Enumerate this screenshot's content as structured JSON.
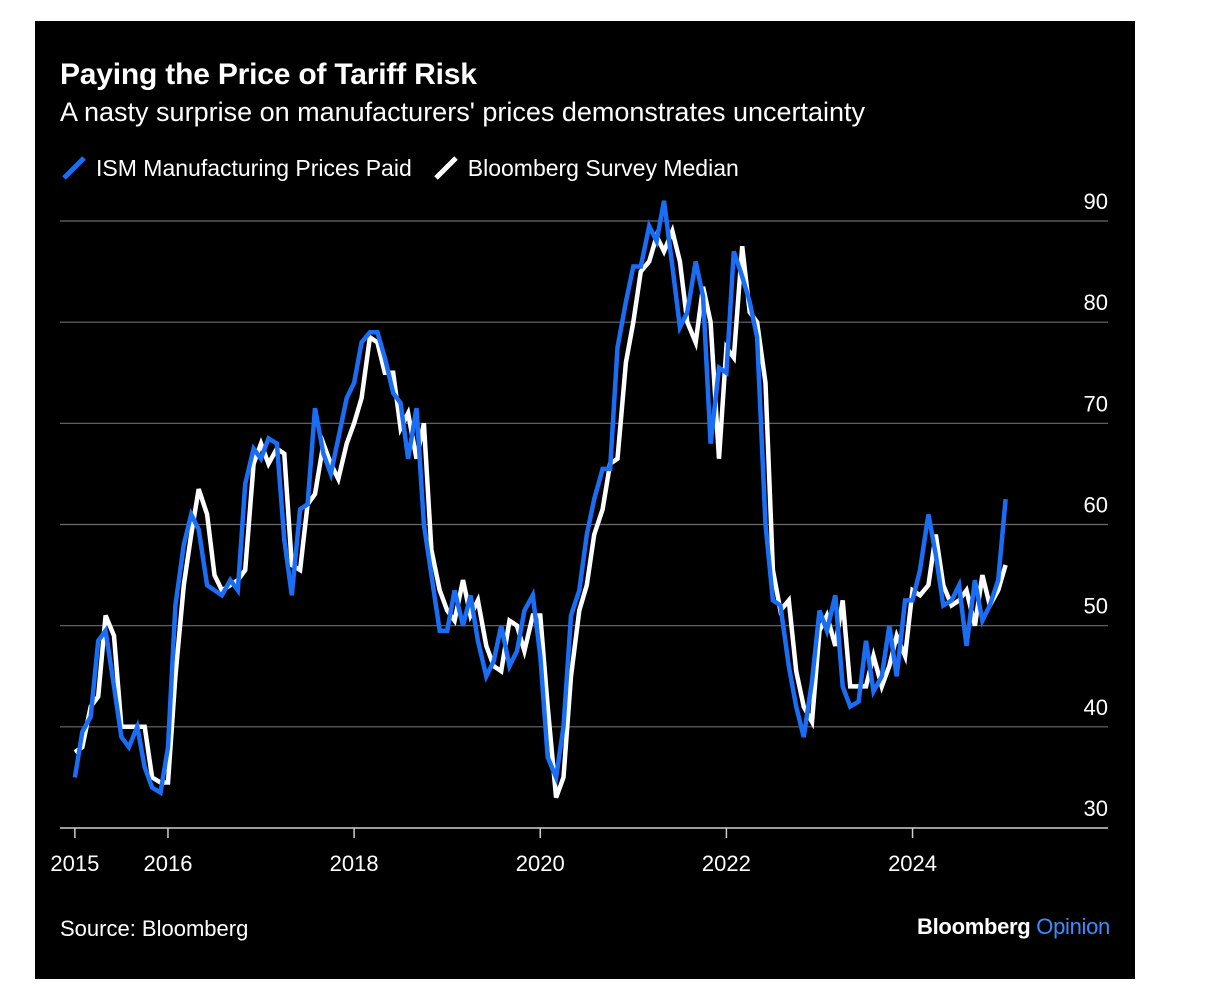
{
  "chart_data": {
    "type": "line",
    "title": "Paying the Price of Tariff Risk",
    "subtitle": "A nasty surprise on manufacturers' prices demonstrates uncertainty",
    "xlabel": "",
    "ylabel": "",
    "ylim": [
      30,
      90
    ],
    "xlim": [
      2015,
      2026
    ],
    "yticks": [
      30,
      40,
      50,
      60,
      70,
      80,
      90
    ],
    "xticks": [
      {
        "value": 2015,
        "label": "2015"
      },
      {
        "value": 2016,
        "label": "2016"
      },
      {
        "value": 2018,
        "label": "2018"
      },
      {
        "value": 2020,
        "label": "2020"
      },
      {
        "value": 2022,
        "label": "2022"
      },
      {
        "value": 2024,
        "label": "2024"
      }
    ],
    "grid": true,
    "y_axis_side": "right",
    "legend_placement": "top-left",
    "series": [
      {
        "name": "ISM Manufacturing Prices Paid",
        "color": "#1a6ef5",
        "points": [
          [
            2015.0,
            35.0
          ],
          [
            2015.08,
            39.5
          ],
          [
            2015.17,
            41.0
          ],
          [
            2015.25,
            48.5
          ],
          [
            2015.33,
            49.5
          ],
          [
            2015.42,
            44.0
          ],
          [
            2015.5,
            39.0
          ],
          [
            2015.58,
            38.0
          ],
          [
            2015.67,
            40.0
          ],
          [
            2015.75,
            36.0
          ],
          [
            2015.83,
            34.0
          ],
          [
            2015.92,
            33.5
          ],
          [
            2016.0,
            38.0
          ],
          [
            2016.08,
            52.0
          ],
          [
            2016.17,
            58.0
          ],
          [
            2016.25,
            61.0
          ],
          [
            2016.33,
            59.5
          ],
          [
            2016.42,
            54.0
          ],
          [
            2016.5,
            53.5
          ],
          [
            2016.58,
            53.0
          ],
          [
            2016.67,
            54.5
          ],
          [
            2016.75,
            53.5
          ],
          [
            2016.83,
            64.0
          ],
          [
            2016.92,
            67.5
          ],
          [
            2017.0,
            66.5
          ],
          [
            2017.08,
            68.5
          ],
          [
            2017.17,
            68.0
          ],
          [
            2017.25,
            58.5
          ],
          [
            2017.33,
            53.0
          ],
          [
            2017.42,
            61.5
          ],
          [
            2017.5,
            62.0
          ],
          [
            2017.58,
            71.5
          ],
          [
            2017.67,
            67.0
          ],
          [
            2017.75,
            65.0
          ],
          [
            2017.83,
            68.5
          ],
          [
            2017.92,
            72.5
          ],
          [
            2018.0,
            74.0
          ],
          [
            2018.08,
            78.0
          ],
          [
            2018.17,
            79.0
          ],
          [
            2018.25,
            79.0
          ],
          [
            2018.33,
            76.5
          ],
          [
            2018.42,
            73.0
          ],
          [
            2018.5,
            72.0
          ],
          [
            2018.58,
            66.5
          ],
          [
            2018.67,
            71.5
          ],
          [
            2018.75,
            60.0
          ],
          [
            2018.83,
            55.0
          ],
          [
            2018.92,
            49.5
          ],
          [
            2019.0,
            49.5
          ],
          [
            2019.08,
            53.5
          ],
          [
            2019.17,
            50.0
          ],
          [
            2019.25,
            53.0
          ],
          [
            2019.33,
            48.5
          ],
          [
            2019.42,
            45.0
          ],
          [
            2019.5,
            46.5
          ],
          [
            2019.58,
            50.0
          ],
          [
            2019.67,
            46.0
          ],
          [
            2019.75,
            47.5
          ],
          [
            2019.83,
            51.5
          ],
          [
            2019.92,
            53.0
          ],
          [
            2020.0,
            47.0
          ],
          [
            2020.08,
            37.0
          ],
          [
            2020.17,
            35.0
          ],
          [
            2020.25,
            40.0
          ],
          [
            2020.33,
            51.0
          ],
          [
            2020.42,
            53.5
          ],
          [
            2020.5,
            59.0
          ],
          [
            2020.58,
            62.5
          ],
          [
            2020.67,
            65.5
          ],
          [
            2020.75,
            65.5
          ],
          [
            2020.83,
            77.5
          ],
          [
            2020.92,
            82.0
          ],
          [
            2021.0,
            85.5
          ],
          [
            2021.08,
            85.5
          ],
          [
            2021.17,
            89.5
          ],
          [
            2021.25,
            88.0
          ],
          [
            2021.33,
            92.0
          ],
          [
            2021.42,
            85.5
          ],
          [
            2021.5,
            79.5
          ],
          [
            2021.58,
            81.0
          ],
          [
            2021.67,
            86.0
          ],
          [
            2021.75,
            82.5
          ],
          [
            2021.83,
            68.0
          ],
          [
            2021.92,
            75.5
          ],
          [
            2022.0,
            75.0
          ],
          [
            2022.08,
            87.0
          ],
          [
            2022.17,
            84.5
          ],
          [
            2022.25,
            82.0
          ],
          [
            2022.33,
            78.5
          ],
          [
            2022.42,
            60.0
          ],
          [
            2022.5,
            52.5
          ],
          [
            2022.58,
            52.0
          ],
          [
            2022.67,
            46.0
          ],
          [
            2022.75,
            42.0
          ],
          [
            2022.83,
            39.0
          ],
          [
            2022.92,
            44.5
          ],
          [
            2023.0,
            51.5
          ],
          [
            2023.08,
            49.5
          ],
          [
            2023.17,
            53.0
          ],
          [
            2023.25,
            44.0
          ],
          [
            2023.33,
            42.0
          ],
          [
            2023.42,
            42.5
          ],
          [
            2023.5,
            48.5
          ],
          [
            2023.58,
            43.5
          ],
          [
            2023.67,
            45.0
          ],
          [
            2023.75,
            50.0
          ],
          [
            2023.83,
            45.0
          ],
          [
            2023.92,
            52.5
          ],
          [
            2024.0,
            52.5
          ],
          [
            2024.08,
            55.5
          ],
          [
            2024.17,
            61.0
          ],
          [
            2024.25,
            57.0
          ],
          [
            2024.33,
            52.0
          ],
          [
            2024.42,
            52.5
          ],
          [
            2024.5,
            54.0
          ],
          [
            2024.58,
            48.0
          ],
          [
            2024.67,
            54.5
          ],
          [
            2024.75,
            50.5
          ],
          [
            2024.83,
            52.0
          ],
          [
            2024.92,
            54.5
          ],
          [
            2025.0,
            62.5
          ]
        ]
      },
      {
        "name": "Bloomberg Survey Median",
        "color": "#ffffff",
        "points": [
          [
            2015.0,
            37.5
          ],
          [
            2015.08,
            38.0
          ],
          [
            2015.17,
            42.0
          ],
          [
            2015.25,
            43.0
          ],
          [
            2015.33,
            51.0
          ],
          [
            2015.42,
            49.0
          ],
          [
            2015.5,
            40.0
          ],
          [
            2015.58,
            40.0
          ],
          [
            2015.67,
            40.0
          ],
          [
            2015.75,
            40.0
          ],
          [
            2015.83,
            35.0
          ],
          [
            2015.92,
            34.5
          ],
          [
            2016.0,
            34.5
          ],
          [
            2016.08,
            45.0
          ],
          [
            2016.17,
            54.0
          ],
          [
            2016.25,
            59.0
          ],
          [
            2016.33,
            63.5
          ],
          [
            2016.42,
            61.0
          ],
          [
            2016.5,
            55.0
          ],
          [
            2016.58,
            53.5
          ],
          [
            2016.67,
            54.0
          ],
          [
            2016.75,
            54.5
          ],
          [
            2016.83,
            55.5
          ],
          [
            2016.92,
            66.0
          ],
          [
            2017.0,
            68.0
          ],
          [
            2017.08,
            66.0
          ],
          [
            2017.17,
            67.5
          ],
          [
            2017.25,
            67.0
          ],
          [
            2017.33,
            56.0
          ],
          [
            2017.42,
            55.5
          ],
          [
            2017.5,
            62.0
          ],
          [
            2017.58,
            63.0
          ],
          [
            2017.67,
            68.0
          ],
          [
            2017.75,
            66.0
          ],
          [
            2017.83,
            64.5
          ],
          [
            2017.92,
            68.0
          ],
          [
            2018.0,
            70.0
          ],
          [
            2018.08,
            72.5
          ],
          [
            2018.17,
            78.5
          ],
          [
            2018.25,
            78.0
          ],
          [
            2018.33,
            75.0
          ],
          [
            2018.42,
            75.0
          ],
          [
            2018.5,
            69.5
          ],
          [
            2018.58,
            71.0
          ],
          [
            2018.67,
            66.5
          ],
          [
            2018.75,
            70.0
          ],
          [
            2018.83,
            57.5
          ],
          [
            2018.92,
            53.5
          ],
          [
            2019.0,
            51.5
          ],
          [
            2019.08,
            50.5
          ],
          [
            2019.17,
            54.5
          ],
          [
            2019.25,
            51.0
          ],
          [
            2019.33,
            52.5
          ],
          [
            2019.42,
            48.0
          ],
          [
            2019.5,
            46.0
          ],
          [
            2019.58,
            45.5
          ],
          [
            2019.67,
            50.5
          ],
          [
            2019.75,
            50.0
          ],
          [
            2019.83,
            47.5
          ],
          [
            2019.92,
            51.0
          ],
          [
            2020.0,
            51.0
          ],
          [
            2020.08,
            42.0
          ],
          [
            2020.17,
            33.0
          ],
          [
            2020.25,
            35.0
          ],
          [
            2020.33,
            45.0
          ],
          [
            2020.42,
            51.5
          ],
          [
            2020.5,
            54.0
          ],
          [
            2020.58,
            59.0
          ],
          [
            2020.67,
            61.5
          ],
          [
            2020.75,
            66.0
          ],
          [
            2020.83,
            66.5
          ],
          [
            2020.92,
            76.0
          ],
          [
            2021.0,
            80.0
          ],
          [
            2021.08,
            85.0
          ],
          [
            2021.17,
            86.0
          ],
          [
            2021.25,
            88.5
          ],
          [
            2021.33,
            87.0
          ],
          [
            2021.42,
            89.0
          ],
          [
            2021.5,
            86.0
          ],
          [
            2021.58,
            80.0
          ],
          [
            2021.67,
            78.0
          ],
          [
            2021.75,
            83.5
          ],
          [
            2021.83,
            80.0
          ],
          [
            2021.92,
            66.5
          ],
          [
            2022.0,
            77.5
          ],
          [
            2022.08,
            76.5
          ],
          [
            2022.17,
            87.5
          ],
          [
            2022.25,
            81.0
          ],
          [
            2022.33,
            80.0
          ],
          [
            2022.42,
            74.0
          ],
          [
            2022.5,
            55.5
          ],
          [
            2022.58,
            51.5
          ],
          [
            2022.67,
            52.5
          ],
          [
            2022.75,
            45.5
          ],
          [
            2022.83,
            42.0
          ],
          [
            2022.92,
            40.5
          ],
          [
            2023.0,
            49.5
          ],
          [
            2023.08,
            51.0
          ],
          [
            2023.17,
            48.0
          ],
          [
            2023.25,
            52.5
          ],
          [
            2023.33,
            44.0
          ],
          [
            2023.42,
            44.0
          ],
          [
            2023.5,
            44.0
          ],
          [
            2023.58,
            47.0
          ],
          [
            2023.67,
            44.0
          ],
          [
            2023.75,
            46.0
          ],
          [
            2023.83,
            49.0
          ],
          [
            2023.92,
            47.0
          ],
          [
            2024.0,
            53.5
          ],
          [
            2024.08,
            53.0
          ],
          [
            2024.17,
            54.0
          ],
          [
            2024.25,
            59.0
          ],
          [
            2024.33,
            54.0
          ],
          [
            2024.42,
            52.0
          ],
          [
            2024.5,
            52.5
          ],
          [
            2024.58,
            53.5
          ],
          [
            2024.67,
            50.0
          ],
          [
            2024.75,
            55.0
          ],
          [
            2024.83,
            52.0
          ],
          [
            2024.92,
            53.5
          ],
          [
            2025.0,
            56.0
          ]
        ]
      }
    ]
  },
  "legend": [
    {
      "label": "ISM Manufacturing Prices Paid",
      "color": "#1a6ef5"
    },
    {
      "label": "Bloomberg Survey Median",
      "color": "#ffffff"
    }
  ],
  "footer": {
    "source": "Source: Bloomberg",
    "brand_main": "Bloomberg",
    "brand_accent": "Opinion"
  },
  "colors": {
    "background": "#000000",
    "gridline": "#6b6b6b",
    "text": "#ffffff",
    "accent": "#1a6ef5"
  }
}
